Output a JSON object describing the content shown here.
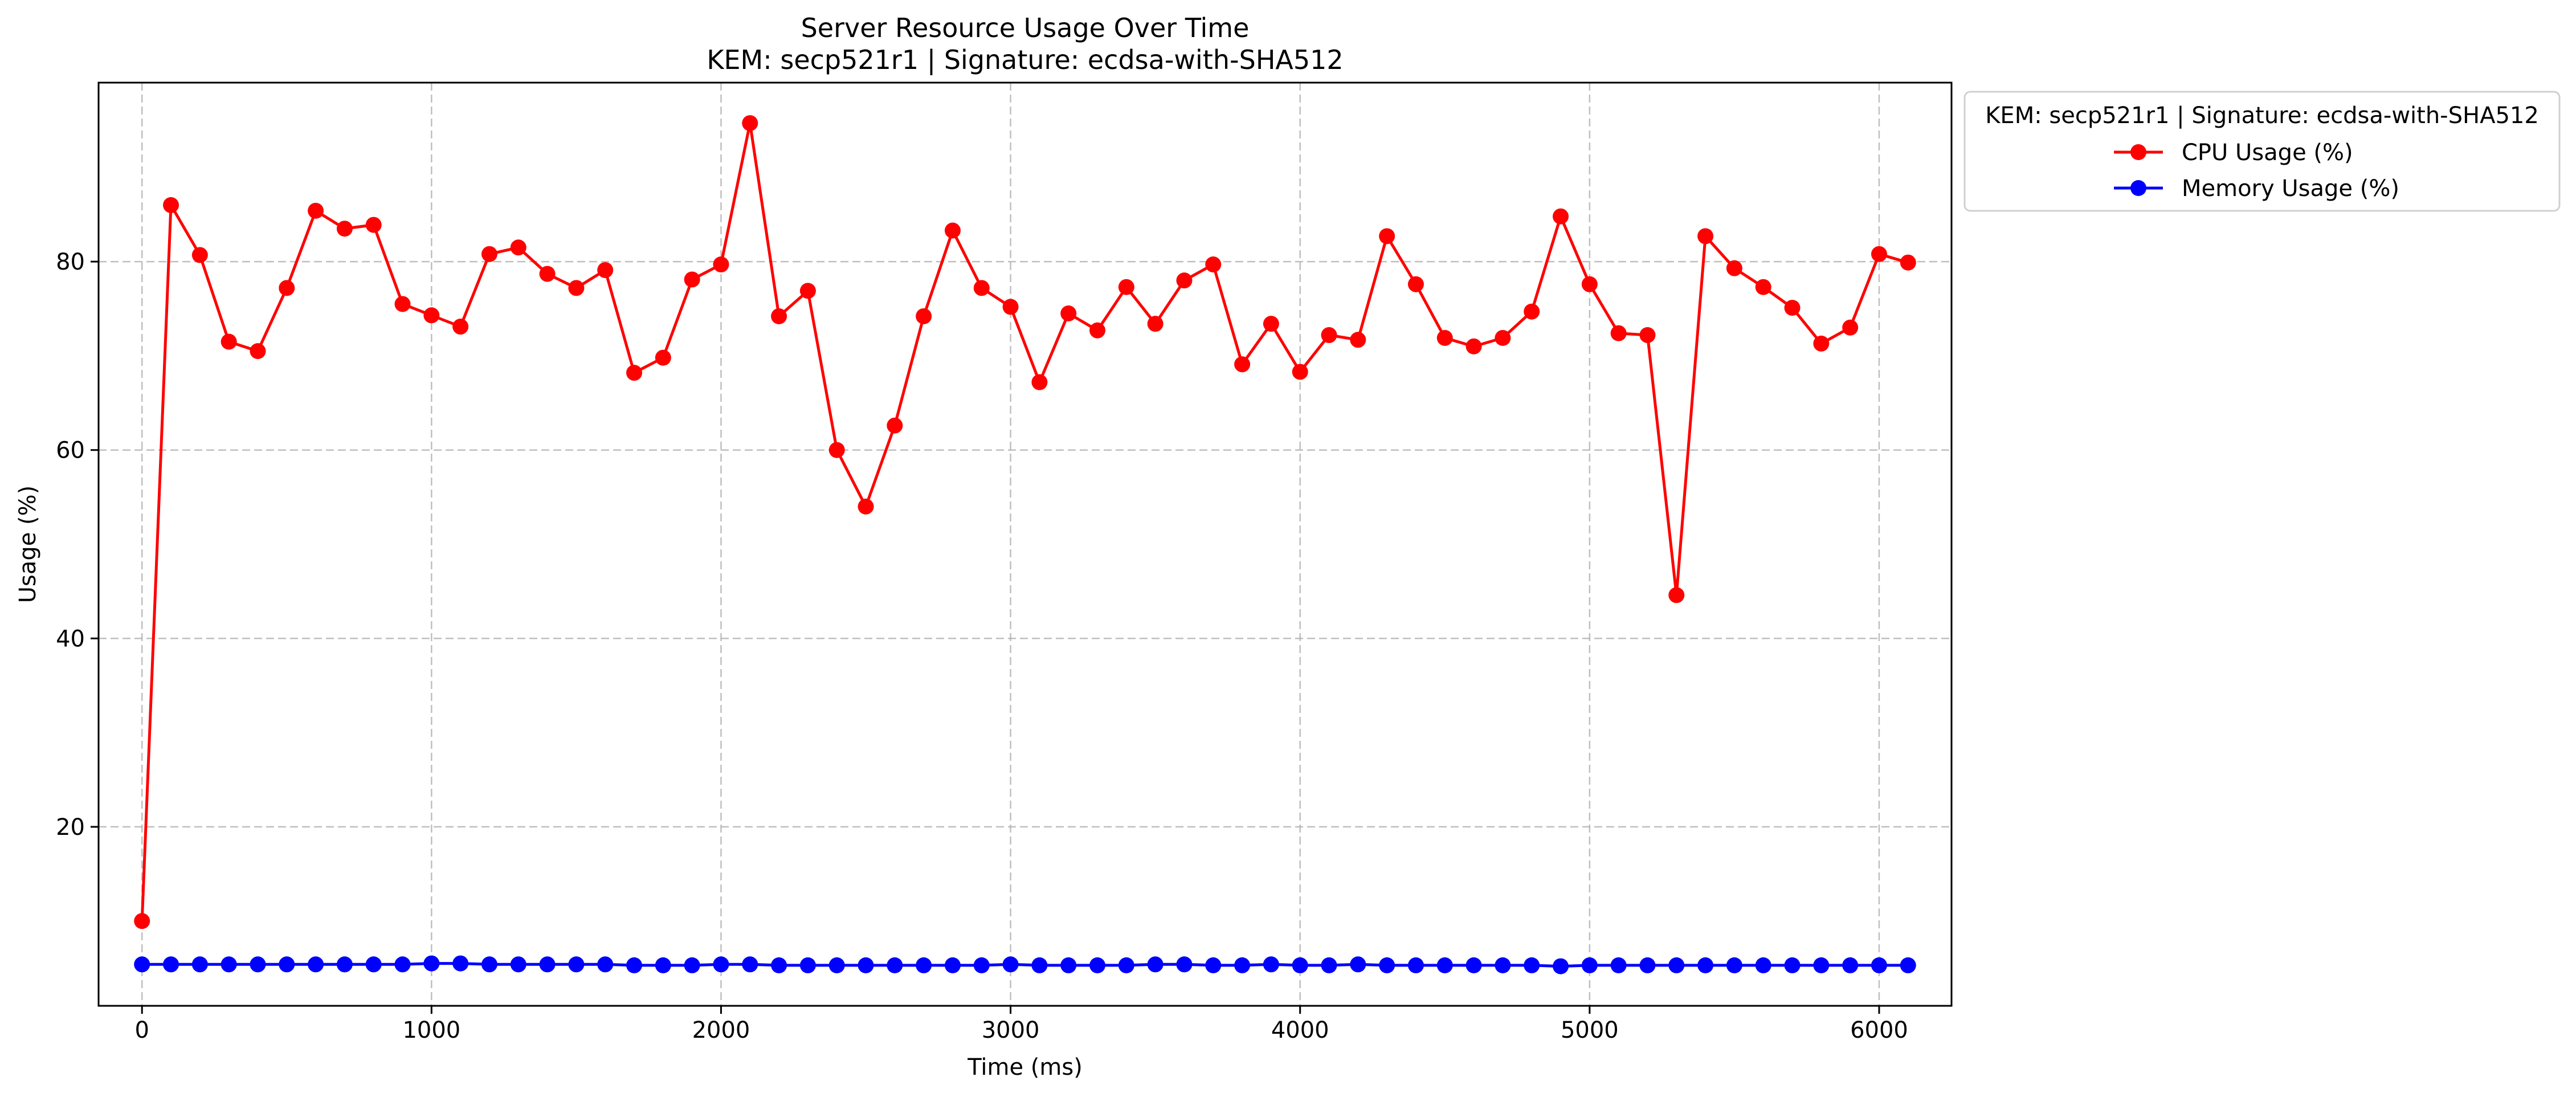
{
  "chart_data": {
    "type": "line",
    "title": "Server Resource Usage Over Time",
    "subtitle": "KEM: secp521r1 | Signature: ecdsa-with-SHA512",
    "xlabel": "Time (ms)",
    "ylabel": "Usage (%)",
    "xlim": [
      -150,
      6250
    ],
    "ylim": [
      1,
      99
    ],
    "xticks": [
      0,
      1000,
      2000,
      3000,
      4000,
      5000,
      6000
    ],
    "yticks": [
      20,
      40,
      60,
      80
    ],
    "grid": true,
    "legend_title": "KEM: secp521r1 | Signature: ecdsa-with-SHA512",
    "legend_position": "outside upper right",
    "x": [
      0,
      100,
      200,
      300,
      400,
      500,
      600,
      700,
      800,
      900,
      1000,
      1100,
      1200,
      1300,
      1400,
      1500,
      1600,
      1700,
      1800,
      1900,
      2000,
      2100,
      2200,
      2300,
      2400,
      2500,
      2600,
      2700,
      2800,
      2900,
      3000,
      3100,
      3200,
      3300,
      3400,
      3500,
      3600,
      3700,
      3800,
      3900,
      4000,
      4100,
      4200,
      4300,
      4400,
      4500,
      4600,
      4700,
      4800,
      4900,
      5000,
      5100,
      5200,
      5300,
      5400,
      5500,
      5600,
      5700,
      5800,
      5900,
      6000,
      6100
    ],
    "series": [
      {
        "name": "CPU Usage (%)",
        "color": "#ff0000",
        "values": [
          10.0,
          86.0,
          80.7,
          71.5,
          70.5,
          77.2,
          85.4,
          83.5,
          83.9,
          75.5,
          74.3,
          73.1,
          80.8,
          81.5,
          78.7,
          77.2,
          79.1,
          68.2,
          69.8,
          78.1,
          79.7,
          94.7,
          74.2,
          76.9,
          60.0,
          54.0,
          62.6,
          74.2,
          83.3,
          77.2,
          75.2,
          67.2,
          74.5,
          72.7,
          77.3,
          73.4,
          78.0,
          79.7,
          69.1,
          73.4,
          68.3,
          72.2,
          71.7,
          82.7,
          77.6,
          71.9,
          71.0,
          71.9,
          74.7,
          84.8,
          77.6,
          72.4,
          72.2,
          44.6,
          82.7,
          79.3,
          77.3,
          75.1,
          71.3,
          73.0,
          80.8,
          79.9
        ]
      },
      {
        "name": "Memory Usage (%)",
        "color": "#0000ff",
        "values": [
          5.4,
          5.4,
          5.4,
          5.4,
          5.4,
          5.4,
          5.4,
          5.4,
          5.4,
          5.4,
          5.5,
          5.5,
          5.4,
          5.4,
          5.4,
          5.4,
          5.4,
          5.3,
          5.3,
          5.3,
          5.4,
          5.4,
          5.3,
          5.3,
          5.3,
          5.3,
          5.3,
          5.3,
          5.3,
          5.3,
          5.4,
          5.3,
          5.3,
          5.3,
          5.3,
          5.4,
          5.4,
          5.3,
          5.3,
          5.4,
          5.3,
          5.3,
          5.4,
          5.3,
          5.3,
          5.3,
          5.3,
          5.3,
          5.3,
          5.2,
          5.3,
          5.3,
          5.3,
          5.3,
          5.3,
          5.3,
          5.3,
          5.3,
          5.3,
          5.3,
          5.3,
          5.3
        ]
      }
    ]
  }
}
